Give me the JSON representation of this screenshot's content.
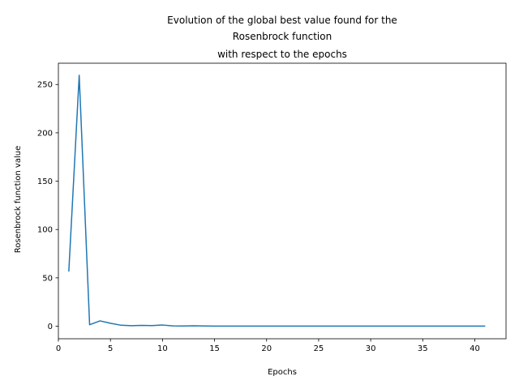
{
  "chart_data": {
    "type": "line",
    "title": [
      "Evolution of the global best value found for the",
      "Rosenbrock function",
      "with respect to the epochs"
    ],
    "xlabel": "Epochs",
    "ylabel": "Rosenbrock function value",
    "xlim": [
      -0.0,
      43.0
    ],
    "ylim": [
      -13.0,
      272.0
    ],
    "xticks": [
      0,
      5,
      10,
      15,
      20,
      25,
      30,
      35,
      40
    ],
    "yticks": [
      0,
      50,
      100,
      150,
      200,
      250
    ],
    "grid": false,
    "legend": "none",
    "series": [
      {
        "color": "#1f77b4",
        "x": [
          1,
          2,
          3,
          4,
          5,
          6,
          7,
          8,
          9,
          10,
          11,
          12,
          13,
          14,
          15,
          16,
          17,
          18,
          19,
          20,
          21,
          22,
          23,
          24,
          25,
          26,
          27,
          28,
          29,
          30,
          31,
          32,
          33,
          34,
          35,
          36,
          37,
          38,
          39,
          40,
          41
        ],
        "y": [
          56.5,
          259.5,
          1.5,
          5.5,
          3.0,
          1.0,
          0.5,
          0.8,
          0.6,
          1.2,
          0.3,
          0.2,
          0.4,
          0.2,
          0.1,
          0.1,
          0.1,
          0.1,
          0.1,
          0.1,
          0.1,
          0.1,
          0.1,
          0.1,
          0.1,
          0.1,
          0.1,
          0.1,
          0.1,
          0.1,
          0.1,
          0.1,
          0.1,
          0.1,
          0.1,
          0.1,
          0.1,
          0.1,
          0.1,
          0.1,
          0.1
        ]
      }
    ]
  }
}
